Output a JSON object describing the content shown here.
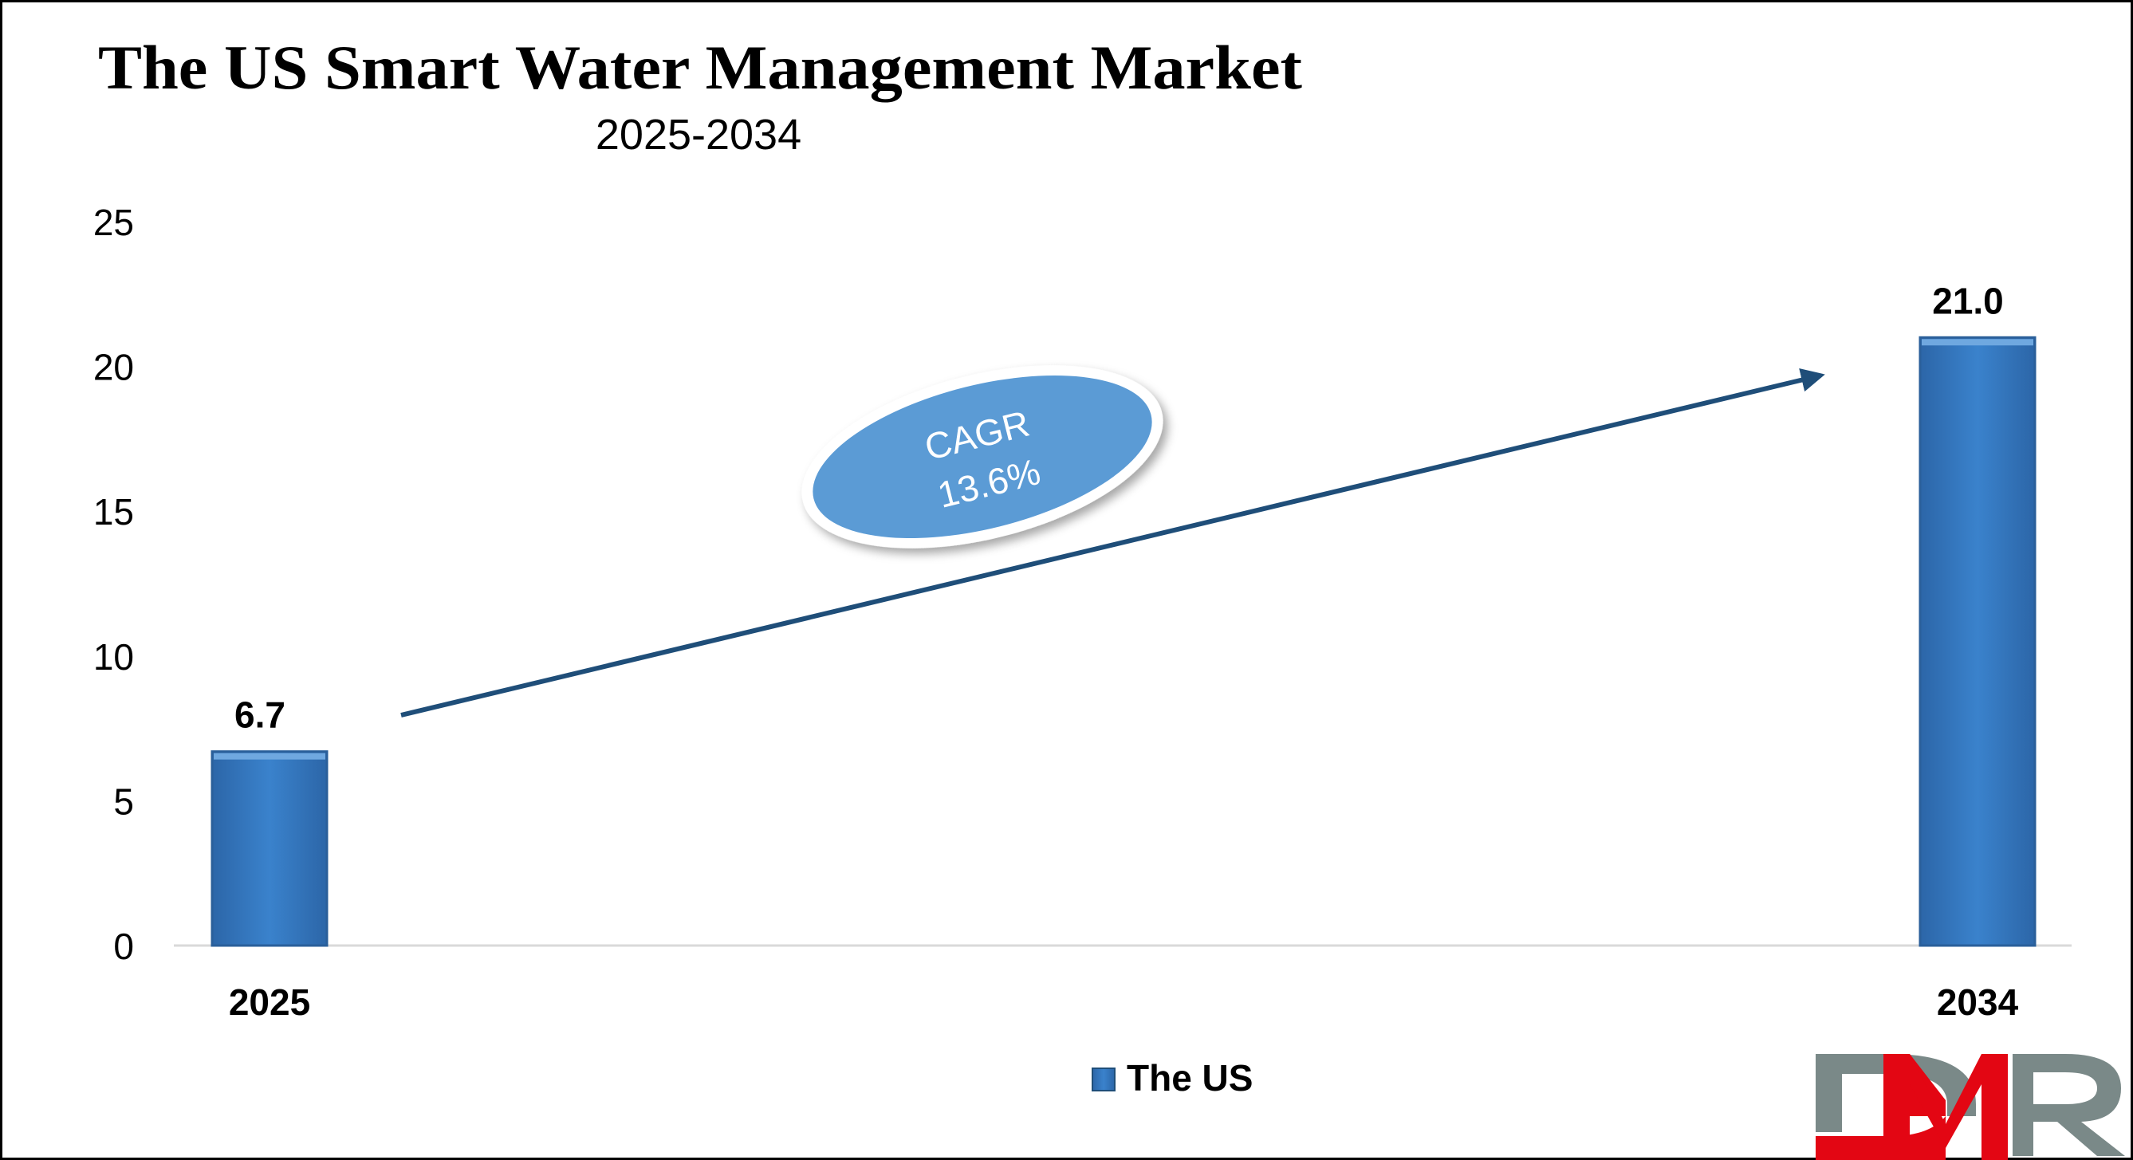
{
  "chart_data": {
    "type": "bar",
    "title": "The US Smart Water Management Market",
    "subtitle": "2025-2034",
    "categories": [
      "2025",
      "2034"
    ],
    "series": [
      {
        "name": "The US",
        "values": [
          6.7,
          21.0
        ]
      }
    ],
    "value_labels": [
      "6.7",
      "21.0"
    ],
    "ylim": [
      0,
      25
    ],
    "yticks": [
      0,
      5,
      10,
      15,
      20,
      25
    ],
    "grid": false,
    "legend": "bottom-center",
    "annotation": {
      "line1": "CAGR",
      "line2": "13.6%"
    },
    "colors": {
      "bar": "#3a7ec6",
      "bar_dark": "#2a5f9a",
      "arrow": "#1f4e79",
      "ellipse": "#5b9bd5"
    }
  },
  "logo": {
    "text": "DMR",
    "colors": {
      "gray": "#7a8988",
      "red": "#e30613"
    }
  }
}
